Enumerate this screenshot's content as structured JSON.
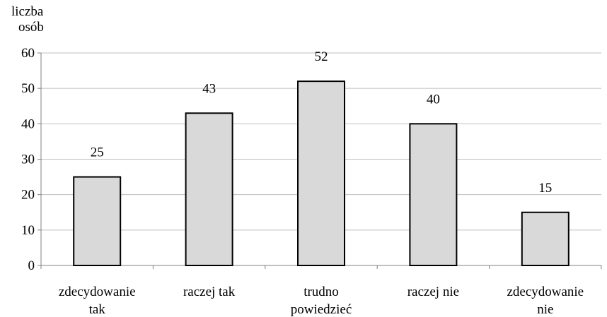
{
  "chart_data": {
    "type": "bar",
    "ylabel_lines": [
      "liczba",
      "osób"
    ],
    "xlabel": "",
    "ylim": [
      0,
      60
    ],
    "yticks": [
      0,
      10,
      20,
      30,
      40,
      50,
      60
    ],
    "grid": true,
    "categories": [
      [
        "zdecydowanie",
        "tak"
      ],
      [
        "raczej tak"
      ],
      [
        "trudno",
        "powiedzieć"
      ],
      [
        "raczej nie"
      ],
      [
        "zdecydowanie",
        "nie"
      ]
    ],
    "values": [
      25,
      43,
      52,
      40,
      15
    ],
    "bar_color": "#d9d9d9",
    "bar_edge_color": "#000000",
    "grid_color": "#bfbfbf",
    "axis_color": "#808080"
  }
}
